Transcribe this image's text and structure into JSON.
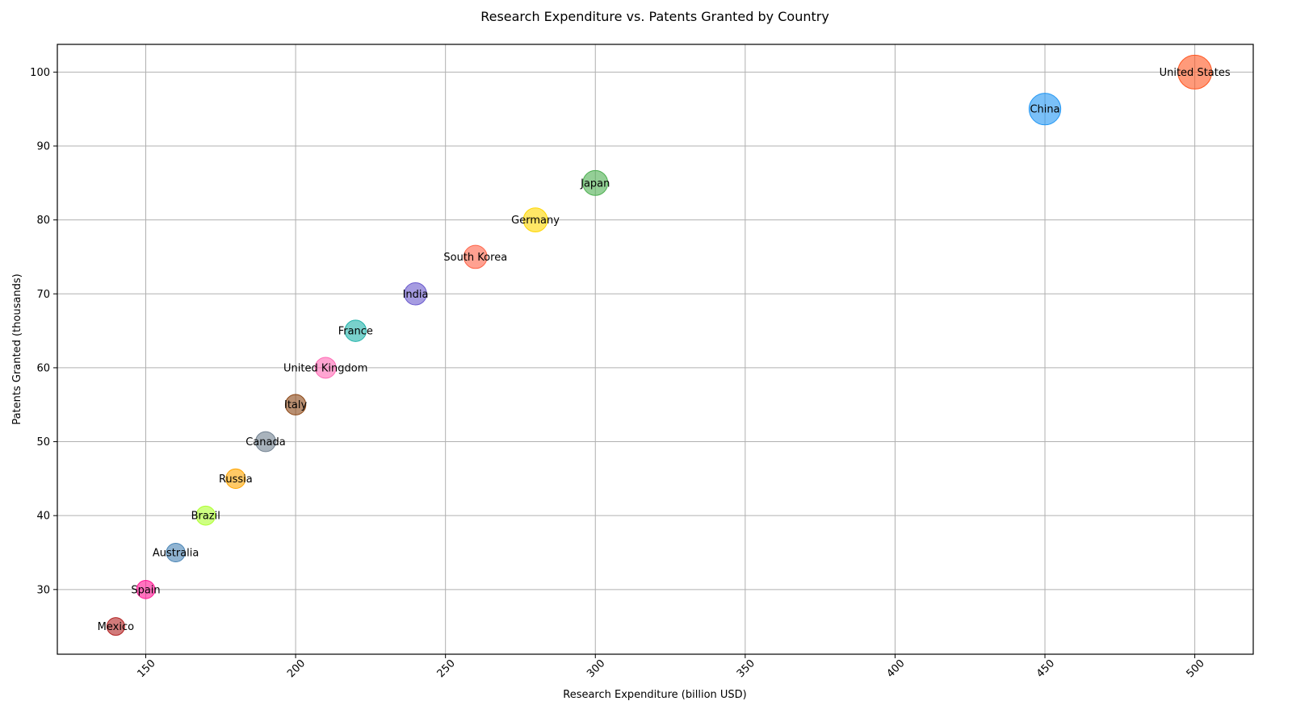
{
  "chart_data": {
    "type": "scatter",
    "title": "Research Expenditure vs. Patents Granted by Country",
    "xlabel": "Research Expenditure (billion USD)",
    "ylabel": "Patents Granted (thousands)",
    "xlim": [
      120.5,
      519.5
    ],
    "ylim": [
      21.25,
      103.75
    ],
    "xticks": [
      150,
      200,
      250,
      300,
      350,
      400,
      450,
      500
    ],
    "yticks": [
      30,
      40,
      50,
      60,
      70,
      80,
      90,
      100
    ],
    "grid": true,
    "legend": "none",
    "points": [
      {
        "label": "United States",
        "x": 500,
        "y": 100,
        "color": "#ff5722"
      },
      {
        "label": "China",
        "x": 450,
        "y": 95,
        "color": "#2196f3"
      },
      {
        "label": "Japan",
        "x": 300,
        "y": 85,
        "color": "#4caf50"
      },
      {
        "label": "Germany",
        "x": 280,
        "y": 80,
        "color": "#ffd700"
      },
      {
        "label": "South Korea",
        "x": 260,
        "y": 75,
        "color": "#ff6347"
      },
      {
        "label": "India",
        "x": 240,
        "y": 70,
        "color": "#6a5acd"
      },
      {
        "label": "France",
        "x": 220,
        "y": 65,
        "color": "#20b2aa"
      },
      {
        "label": "United Kingdom",
        "x": 210,
        "y": 60,
        "color": "#ff69b4"
      },
      {
        "label": "Italy",
        "x": 200,
        "y": 55,
        "color": "#8b4513"
      },
      {
        "label": "Canada",
        "x": 190,
        "y": 50,
        "color": "#708090"
      },
      {
        "label": "Russia",
        "x": 180,
        "y": 45,
        "color": "#ffa500"
      },
      {
        "label": "Brazil",
        "x": 170,
        "y": 40,
        "color": "#adff2f"
      },
      {
        "label": "Australia",
        "x": 160,
        "y": 35,
        "color": "#4682b4"
      },
      {
        "label": "Spain",
        "x": 150,
        "y": 30,
        "color": "#ff1493"
      },
      {
        "label": "Mexico",
        "x": 140,
        "y": 25,
        "color": "#b22222"
      }
    ]
  }
}
